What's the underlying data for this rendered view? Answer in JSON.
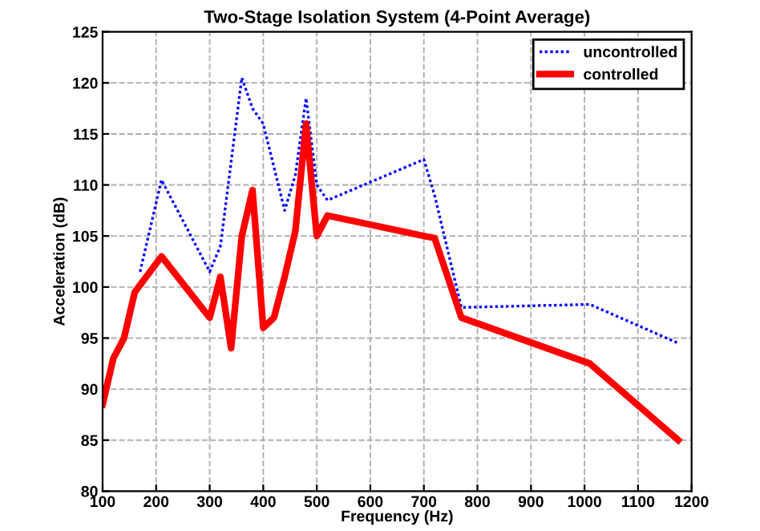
{
  "chart_data": {
    "type": "line",
    "title": "Two-Stage Isolation System (4-Point Average)",
    "xlabel": "Frequency (Hz)",
    "ylabel": "Acceleration (dB)",
    "series": [
      {
        "name": "uncontrolled",
        "color": "#0000ff",
        "line_style": "dotted",
        "x": [
          170,
          210,
          300,
          320,
          360,
          380,
          400,
          440,
          460,
          480,
          500,
          520,
          700,
          720,
          770,
          1010,
          1175
        ],
        "values": [
          101.5,
          110.5,
          101.5,
          104,
          120.5,
          117.5,
          116,
          107.5,
          111,
          118.5,
          110,
          108.5,
          112.5,
          109,
          98,
          98.3,
          94.5
        ]
      },
      {
        "name": "controlled",
        "color": "#ff0000",
        "line_style": "solid",
        "x": [
          100,
          120,
          140,
          160,
          210,
          300,
          320,
          340,
          360,
          380,
          400,
          420,
          440,
          460,
          480,
          500,
          520,
          700,
          720,
          770,
          1010,
          1175
        ],
        "values": [
          88.5,
          93,
          95,
          99.5,
          103,
          97,
          101,
          94,
          105,
          109.5,
          96,
          97,
          101,
          105.5,
          116,
          105,
          107,
          105,
          104.8,
          97,
          92.5,
          85
        ]
      }
    ],
    "xlim": [
      100,
      1200
    ],
    "xticks": [
      100,
      200,
      300,
      400,
      500,
      600,
      700,
      800,
      900,
      1000,
      1100,
      1200
    ],
    "ylim": [
      80,
      125
    ],
    "yticks": [
      80,
      85,
      90,
      95,
      100,
      105,
      110,
      115,
      120,
      125
    ],
    "grid": true,
    "legend": "top right",
    "marker": "none"
  }
}
